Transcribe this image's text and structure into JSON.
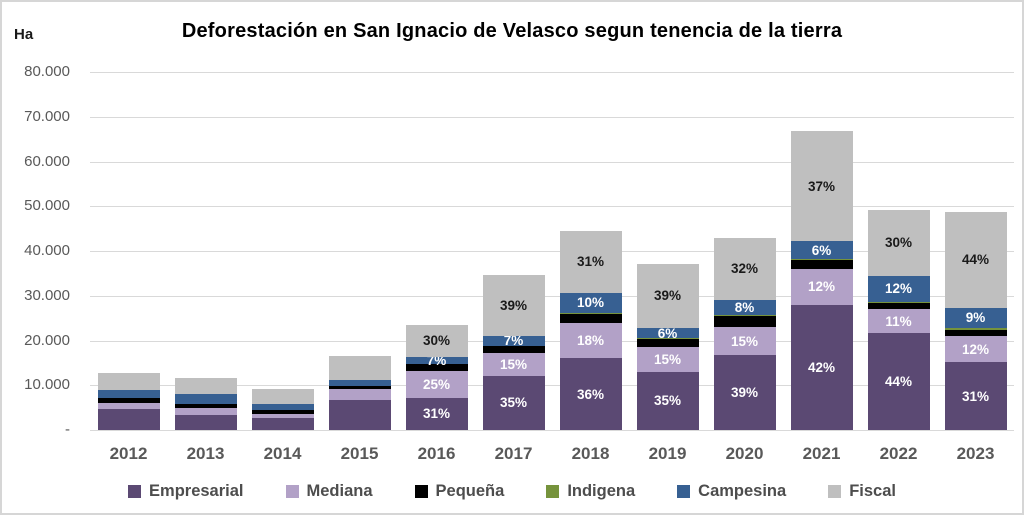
{
  "chart_data": {
    "type": "bar",
    "subtype": "stacked-column",
    "title": "Deforestación en San Ignacio de Velasco  segun tenencia de la tierra",
    "unit_label": "Ha",
    "xlabel": "",
    "ylabel": "Ha",
    "ylim": [
      0,
      80000
    ],
    "grid": true,
    "legend_position": "bottom",
    "y_ticks": [
      "80.000",
      "70.000",
      "60.000",
      "50.000",
      "40.000",
      "30.000",
      "20.000",
      "10.000",
      "-"
    ],
    "categories": [
      "2012",
      "2013",
      "2014",
      "2015",
      "2016",
      "2017",
      "2018",
      "2019",
      "2020",
      "2021",
      "2022",
      "2023"
    ],
    "series": [
      {
        "name": "Empresarial",
        "color": "#5b4973",
        "label_color": "#ffffff",
        "values": [
          4700,
          3400,
          2700,
          6650,
          7250,
          12100,
          16000,
          13000,
          16650,
          28000,
          21600,
          15100
        ],
        "labels": [
          null,
          null,
          null,
          null,
          "31%",
          "35%",
          "36%",
          "35%",
          "39%",
          "42%",
          "44%",
          "31%"
        ]
      },
      {
        "name": "Mediana",
        "color": "#b2a1c7",
        "label_color": "#ffffff",
        "values": [
          1300,
          1500,
          950,
          2450,
          5850,
          5200,
          8000,
          5550,
          6400,
          8000,
          5400,
          5850
        ],
        "labels": [
          null,
          null,
          null,
          null,
          "25%",
          "15%",
          "18%",
          "15%",
          "15%",
          "12%",
          "11%",
          "12%"
        ]
      },
      {
        "name": "Pequeña",
        "color": "#000000",
        "label_color": "#ffffff",
        "values": [
          1050,
          950,
          750,
          700,
          1650,
          1400,
          2100,
          1850,
          2550,
          2000,
          1470,
          1460
        ],
        "labels": [
          null,
          null,
          null,
          null,
          null,
          null,
          null,
          null,
          null,
          null,
          null,
          null
        ]
      },
      {
        "name": "Indigena",
        "color": "#76933c",
        "label_color": "#ffffff",
        "values": [
          0,
          0,
          0,
          0,
          0,
          0,
          150,
          100,
          150,
          150,
          120,
          490
        ],
        "labels": [
          null,
          null,
          null,
          null,
          null,
          null,
          null,
          null,
          null,
          null,
          null,
          null
        ]
      },
      {
        "name": "Campesina",
        "color": "#376092",
        "label_color": "#ffffff",
        "values": [
          1800,
          2250,
          1350,
          1350,
          1650,
          2400,
          4450,
          2250,
          3400,
          4000,
          5900,
          4380
        ],
        "labels": [
          null,
          null,
          null,
          null,
          "7%",
          "7%",
          "10%",
          "6%",
          "8%",
          "6%",
          "12%",
          "9%"
        ]
      },
      {
        "name": "Fiscal",
        "color": "#bfbfbf",
        "label_color": "#1a1a1a",
        "values": [
          3850,
          3600,
          3350,
          5350,
          7000,
          13500,
          13850,
          14450,
          13700,
          24600,
          14730,
          21420
        ],
        "labels": [
          null,
          null,
          null,
          null,
          "30%",
          "39%",
          "31%",
          "39%",
          "32%",
          "37%",
          "30%",
          "44%"
        ]
      }
    ]
  },
  "style": {
    "gridline_color": "#d9d9d9",
    "axis_text_color": "#595959",
    "frame_border_color": "#d6d6d6"
  }
}
